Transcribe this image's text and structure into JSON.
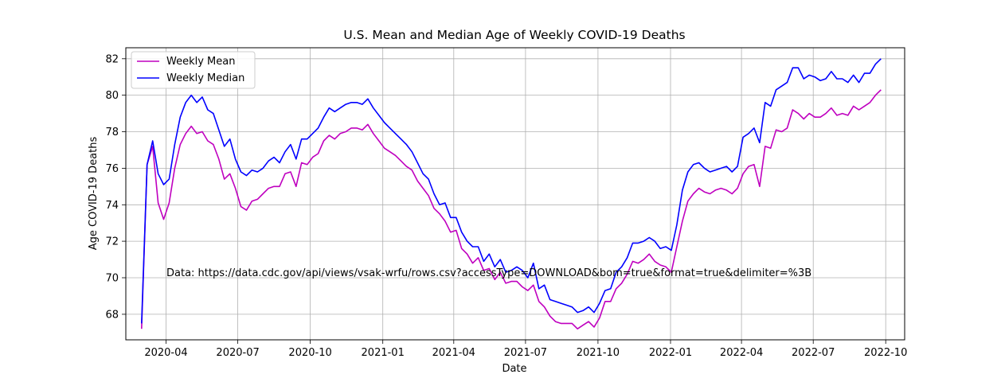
{
  "chart_data": {
    "type": "line",
    "title": "U.S. Mean and Median Age of Weekly COVID-19 Deaths",
    "xlabel": "Date",
    "ylabel": "Age COVID-19 Deaths",
    "xlim": [
      "2020-02-10",
      "2022-10-25"
    ],
    "ylim": [
      66.6,
      82.6
    ],
    "xticks": [
      "2020-04-01",
      "2020-07-01",
      "2020-10-01",
      "2021-01-01",
      "2021-04-01",
      "2021-07-01",
      "2021-10-01",
      "2022-01-01",
      "2022-04-01",
      "2022-07-01",
      "2022-10-01"
    ],
    "xtick_labels": [
      "2020-04",
      "2020-07",
      "2020-10",
      "2021-01",
      "2021-04",
      "2021-07",
      "2021-10",
      "2022-01",
      "2022-04",
      "2022-07",
      "2022-10"
    ],
    "yticks": [
      68,
      70,
      72,
      74,
      76,
      78,
      80,
      82
    ],
    "grid": true,
    "legend_position": "upper-left",
    "annotation": "Data: https://data.cdc.gov/api/views/vsak-wrfu/rows.csv?accessType=DOWNLOAD&bom=true&format=true&delimiter=%3B",
    "series": [
      {
        "name": "Weekly Mean",
        "color": "#bf00bf",
        "points": [
          [
            "2020-03-01",
            67.2
          ],
          [
            "2020-03-08",
            76.2
          ],
          [
            "2020-03-15",
            77.2
          ],
          [
            "2020-03-22",
            74.1
          ],
          [
            "2020-03-29",
            73.2
          ],
          [
            "2020-04-05",
            74.1
          ],
          [
            "2020-04-12",
            76.0
          ],
          [
            "2020-04-19",
            77.3
          ],
          [
            "2020-04-26",
            77.9
          ],
          [
            "2020-05-03",
            78.3
          ],
          [
            "2020-05-10",
            77.9
          ],
          [
            "2020-05-17",
            78.0
          ],
          [
            "2020-05-24",
            77.5
          ],
          [
            "2020-05-31",
            77.3
          ],
          [
            "2020-06-07",
            76.5
          ],
          [
            "2020-06-14",
            75.4
          ],
          [
            "2020-06-21",
            75.7
          ],
          [
            "2020-06-28",
            74.9
          ],
          [
            "2020-07-05",
            73.9
          ],
          [
            "2020-07-12",
            73.7
          ],
          [
            "2020-07-19",
            74.2
          ],
          [
            "2020-07-26",
            74.3
          ],
          [
            "2020-08-02",
            74.6
          ],
          [
            "2020-08-09",
            74.9
          ],
          [
            "2020-08-16",
            75.0
          ],
          [
            "2020-08-23",
            75.0
          ],
          [
            "2020-08-30",
            75.7
          ],
          [
            "2020-09-06",
            75.8
          ],
          [
            "2020-09-13",
            75.0
          ],
          [
            "2020-09-20",
            76.3
          ],
          [
            "2020-09-27",
            76.2
          ],
          [
            "2020-10-04",
            76.6
          ],
          [
            "2020-10-11",
            76.8
          ],
          [
            "2020-10-18",
            77.5
          ],
          [
            "2020-10-25",
            77.8
          ],
          [
            "2020-11-01",
            77.6
          ],
          [
            "2020-11-08",
            77.9
          ],
          [
            "2020-11-15",
            78.0
          ],
          [
            "2020-11-22",
            78.2
          ],
          [
            "2020-11-29",
            78.2
          ],
          [
            "2020-12-06",
            78.1
          ],
          [
            "2020-12-13",
            78.4
          ],
          [
            "2020-12-20",
            77.9
          ],
          [
            "2020-12-27",
            77.5
          ],
          [
            "2021-01-03",
            77.1
          ],
          [
            "2021-01-10",
            76.9
          ],
          [
            "2021-01-17",
            76.7
          ],
          [
            "2021-01-24",
            76.4
          ],
          [
            "2021-01-31",
            76.1
          ],
          [
            "2021-02-07",
            75.9
          ],
          [
            "2021-02-14",
            75.3
          ],
          [
            "2021-02-21",
            74.9
          ],
          [
            "2021-02-28",
            74.5
          ],
          [
            "2021-03-07",
            73.8
          ],
          [
            "2021-03-14",
            73.5
          ],
          [
            "2021-03-21",
            73.1
          ],
          [
            "2021-03-28",
            72.5
          ],
          [
            "2021-04-04",
            72.6
          ],
          [
            "2021-04-11",
            71.6
          ],
          [
            "2021-04-18",
            71.3
          ],
          [
            "2021-04-25",
            70.8
          ],
          [
            "2021-05-02",
            71.1
          ],
          [
            "2021-05-09",
            70.4
          ],
          [
            "2021-05-16",
            70.5
          ],
          [
            "2021-05-23",
            69.9
          ],
          [
            "2021-05-30",
            70.3
          ],
          [
            "2021-06-06",
            69.7
          ],
          [
            "2021-06-13",
            69.8
          ],
          [
            "2021-06-20",
            69.8
          ],
          [
            "2021-06-27",
            69.5
          ],
          [
            "2021-07-04",
            69.3
          ],
          [
            "2021-07-11",
            69.6
          ],
          [
            "2021-07-18",
            68.7
          ],
          [
            "2021-07-25",
            68.4
          ],
          [
            "2021-08-01",
            67.9
          ],
          [
            "2021-08-08",
            67.6
          ],
          [
            "2021-08-15",
            67.5
          ],
          [
            "2021-08-22",
            67.5
          ],
          [
            "2021-08-29",
            67.5
          ],
          [
            "2021-09-05",
            67.2
          ],
          [
            "2021-09-12",
            67.4
          ],
          [
            "2021-09-19",
            67.6
          ],
          [
            "2021-09-26",
            67.3
          ],
          [
            "2021-10-03",
            67.8
          ],
          [
            "2021-10-10",
            68.7
          ],
          [
            "2021-10-17",
            68.7
          ],
          [
            "2021-10-24",
            69.4
          ],
          [
            "2021-10-31",
            69.7
          ],
          [
            "2021-11-07",
            70.2
          ],
          [
            "2021-11-14",
            70.9
          ],
          [
            "2021-11-21",
            70.8
          ],
          [
            "2021-11-28",
            71.0
          ],
          [
            "2021-12-05",
            71.3
          ],
          [
            "2021-12-12",
            70.9
          ],
          [
            "2021-12-19",
            70.7
          ],
          [
            "2021-12-26",
            70.6
          ],
          [
            "2022-01-02",
            70.3
          ],
          [
            "2022-01-09",
            71.7
          ],
          [
            "2022-01-16",
            73.1
          ],
          [
            "2022-01-23",
            74.2
          ],
          [
            "2022-01-30",
            74.6
          ],
          [
            "2022-02-06",
            74.9
          ],
          [
            "2022-02-13",
            74.7
          ],
          [
            "2022-02-20",
            74.6
          ],
          [
            "2022-02-27",
            74.8
          ],
          [
            "2022-03-06",
            74.9
          ],
          [
            "2022-03-13",
            74.8
          ],
          [
            "2022-03-20",
            74.6
          ],
          [
            "2022-03-27",
            74.9
          ],
          [
            "2022-04-03",
            75.7
          ],
          [
            "2022-04-10",
            76.1
          ],
          [
            "2022-04-17",
            76.2
          ],
          [
            "2022-04-24",
            75.0
          ],
          [
            "2022-05-01",
            77.2
          ],
          [
            "2022-05-08",
            77.1
          ],
          [
            "2022-05-15",
            78.1
          ],
          [
            "2022-05-22",
            78.0
          ],
          [
            "2022-05-29",
            78.2
          ],
          [
            "2022-06-05",
            79.2
          ],
          [
            "2022-06-12",
            79.0
          ],
          [
            "2022-06-19",
            78.7
          ],
          [
            "2022-06-26",
            79.0
          ],
          [
            "2022-07-03",
            78.8
          ],
          [
            "2022-07-10",
            78.8
          ],
          [
            "2022-07-17",
            79.0
          ],
          [
            "2022-07-24",
            79.3
          ],
          [
            "2022-07-31",
            78.9
          ],
          [
            "2022-08-07",
            79.0
          ],
          [
            "2022-08-14",
            78.9
          ],
          [
            "2022-08-21",
            79.4
          ],
          [
            "2022-08-28",
            79.2
          ],
          [
            "2022-09-04",
            79.4
          ],
          [
            "2022-09-11",
            79.6
          ],
          [
            "2022-09-18",
            80.0
          ],
          [
            "2022-09-25",
            80.3
          ]
        ]
      },
      {
        "name": "Weekly Median",
        "color": "#0000ff",
        "points": [
          [
            "2020-03-01",
            67.5
          ],
          [
            "2020-03-08",
            76.2
          ],
          [
            "2020-03-15",
            77.5
          ],
          [
            "2020-03-22",
            75.7
          ],
          [
            "2020-03-29",
            75.1
          ],
          [
            "2020-04-05",
            75.4
          ],
          [
            "2020-04-12",
            77.3
          ],
          [
            "2020-04-19",
            78.8
          ],
          [
            "2020-04-26",
            79.6
          ],
          [
            "2020-05-03",
            80.0
          ],
          [
            "2020-05-10",
            79.6
          ],
          [
            "2020-05-17",
            79.9
          ],
          [
            "2020-05-24",
            79.2
          ],
          [
            "2020-05-31",
            79.0
          ],
          [
            "2020-06-07",
            78.1
          ],
          [
            "2020-06-14",
            77.2
          ],
          [
            "2020-06-21",
            77.6
          ],
          [
            "2020-06-28",
            76.5
          ],
          [
            "2020-07-05",
            75.8
          ],
          [
            "2020-07-12",
            75.6
          ],
          [
            "2020-07-19",
            75.9
          ],
          [
            "2020-07-26",
            75.8
          ],
          [
            "2020-08-02",
            76.0
          ],
          [
            "2020-08-09",
            76.4
          ],
          [
            "2020-08-16",
            76.6
          ],
          [
            "2020-08-23",
            76.3
          ],
          [
            "2020-08-30",
            76.9
          ],
          [
            "2020-09-06",
            77.3
          ],
          [
            "2020-09-13",
            76.5
          ],
          [
            "2020-09-20",
            77.6
          ],
          [
            "2020-09-27",
            77.6
          ],
          [
            "2020-10-04",
            77.9
          ],
          [
            "2020-10-11",
            78.2
          ],
          [
            "2020-10-18",
            78.8
          ],
          [
            "2020-10-25",
            79.3
          ],
          [
            "2020-11-01",
            79.1
          ],
          [
            "2020-11-08",
            79.3
          ],
          [
            "2020-11-15",
            79.5
          ],
          [
            "2020-11-22",
            79.6
          ],
          [
            "2020-11-29",
            79.6
          ],
          [
            "2020-12-06",
            79.5
          ],
          [
            "2020-12-13",
            79.8
          ],
          [
            "2020-12-20",
            79.3
          ],
          [
            "2020-12-27",
            78.9
          ],
          [
            "2021-01-03",
            78.5
          ],
          [
            "2021-01-10",
            78.2
          ],
          [
            "2021-01-17",
            77.9
          ],
          [
            "2021-01-24",
            77.6
          ],
          [
            "2021-01-31",
            77.3
          ],
          [
            "2021-02-07",
            76.9
          ],
          [
            "2021-02-14",
            76.3
          ],
          [
            "2021-02-21",
            75.7
          ],
          [
            "2021-02-28",
            75.4
          ],
          [
            "2021-03-07",
            74.6
          ],
          [
            "2021-03-14",
            74.0
          ],
          [
            "2021-03-21",
            74.1
          ],
          [
            "2021-03-28",
            73.3
          ],
          [
            "2021-04-04",
            73.3
          ],
          [
            "2021-04-11",
            72.5
          ],
          [
            "2021-04-18",
            72.0
          ],
          [
            "2021-04-25",
            71.7
          ],
          [
            "2021-05-02",
            71.7
          ],
          [
            "2021-05-09",
            70.9
          ],
          [
            "2021-05-16",
            71.3
          ],
          [
            "2021-05-23",
            70.6
          ],
          [
            "2021-05-30",
            71.0
          ],
          [
            "2021-06-06",
            70.3
          ],
          [
            "2021-06-13",
            70.4
          ],
          [
            "2021-06-20",
            70.6
          ],
          [
            "2021-06-27",
            70.4
          ],
          [
            "2021-07-04",
            70.0
          ],
          [
            "2021-07-11",
            70.8
          ],
          [
            "2021-07-18",
            69.4
          ],
          [
            "2021-07-25",
            69.6
          ],
          [
            "2021-08-01",
            68.8
          ],
          [
            "2021-08-08",
            68.7
          ],
          [
            "2021-08-15",
            68.6
          ],
          [
            "2021-08-22",
            68.5
          ],
          [
            "2021-08-29",
            68.4
          ],
          [
            "2021-09-05",
            68.1
          ],
          [
            "2021-09-12",
            68.2
          ],
          [
            "2021-09-19",
            68.4
          ],
          [
            "2021-09-26",
            68.1
          ],
          [
            "2021-10-03",
            68.6
          ],
          [
            "2021-10-10",
            69.3
          ],
          [
            "2021-10-17",
            69.4
          ],
          [
            "2021-10-24",
            70.3
          ],
          [
            "2021-10-31",
            70.6
          ],
          [
            "2021-11-07",
            71.1
          ],
          [
            "2021-11-14",
            71.9
          ],
          [
            "2021-11-21",
            71.9
          ],
          [
            "2021-11-28",
            72.0
          ],
          [
            "2021-12-05",
            72.2
          ],
          [
            "2021-12-12",
            72.0
          ],
          [
            "2021-12-19",
            71.6
          ],
          [
            "2021-12-26",
            71.7
          ],
          [
            "2022-01-02",
            71.5
          ],
          [
            "2022-01-09",
            72.9
          ],
          [
            "2022-01-16",
            74.8
          ],
          [
            "2022-01-23",
            75.8
          ],
          [
            "2022-01-30",
            76.2
          ],
          [
            "2022-02-06",
            76.3
          ],
          [
            "2022-02-13",
            76.0
          ],
          [
            "2022-02-20",
            75.8
          ],
          [
            "2022-02-27",
            75.9
          ],
          [
            "2022-03-06",
            76.0
          ],
          [
            "2022-03-13",
            76.1
          ],
          [
            "2022-03-20",
            75.8
          ],
          [
            "2022-03-27",
            76.1
          ],
          [
            "2022-04-03",
            77.7
          ],
          [
            "2022-04-10",
            77.9
          ],
          [
            "2022-04-17",
            78.2
          ],
          [
            "2022-04-24",
            77.4
          ],
          [
            "2022-05-01",
            79.6
          ],
          [
            "2022-05-08",
            79.4
          ],
          [
            "2022-05-15",
            80.3
          ],
          [
            "2022-05-22",
            80.5
          ],
          [
            "2022-05-29",
            80.7
          ],
          [
            "2022-06-05",
            81.5
          ],
          [
            "2022-06-12",
            81.5
          ],
          [
            "2022-06-19",
            80.9
          ],
          [
            "2022-06-26",
            81.1
          ],
          [
            "2022-07-03",
            81.0
          ],
          [
            "2022-07-10",
            80.8
          ],
          [
            "2022-07-17",
            80.9
          ],
          [
            "2022-07-24",
            81.3
          ],
          [
            "2022-07-31",
            80.9
          ],
          [
            "2022-08-07",
            80.9
          ],
          [
            "2022-08-14",
            80.7
          ],
          [
            "2022-08-21",
            81.1
          ],
          [
            "2022-08-28",
            80.7
          ],
          [
            "2022-09-04",
            81.2
          ],
          [
            "2022-09-11",
            81.2
          ],
          [
            "2022-09-18",
            81.7
          ],
          [
            "2022-09-25",
            82.0
          ]
        ]
      }
    ]
  }
}
